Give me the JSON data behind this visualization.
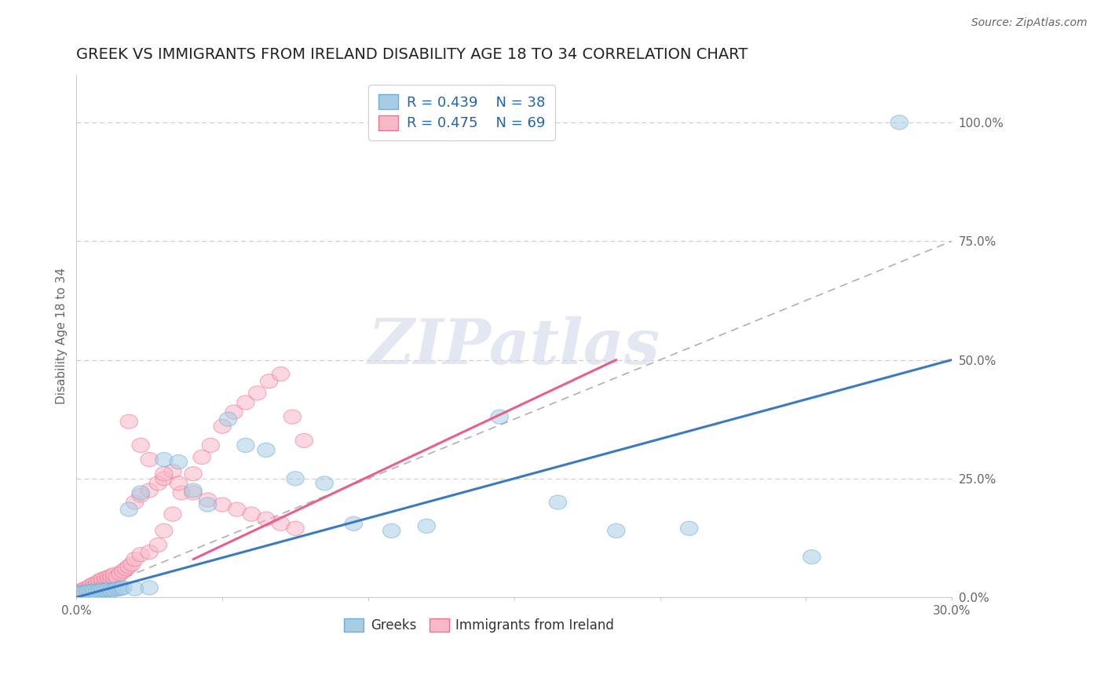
{
  "title": "GREEK VS IMMIGRANTS FROM IRELAND DISABILITY AGE 18 TO 34 CORRELATION CHART",
  "source_text": "Source: ZipAtlas.com",
  "ylabel": "Disability Age 18 to 34",
  "xlim": [
    0.0,
    0.3
  ],
  "ylim": [
    0.0,
    1.1
  ],
  "yticks_right": [
    0.0,
    0.25,
    0.5,
    0.75,
    1.0
  ],
  "ytick_labels_right": [
    "0.0%",
    "25.0%",
    "50.0%",
    "75.0%",
    "100.0%"
  ],
  "legend_blue_r": "R = 0.439",
  "legend_blue_n": "N = 38",
  "legend_pink_r": "R = 0.475",
  "legend_pink_n": "N = 69",
  "blue_color": "#a8cce4",
  "blue_edge_color": "#6aaed6",
  "pink_color": "#f9b8c8",
  "pink_edge_color": "#f07090",
  "blue_line_color": "#3a7abf",
  "pink_line_color": "#e8608a",
  "gray_dash_color": "#b0b0b0",
  "watermark_color": "#d0d8e8",
  "watermark_text": "ZIPatlas",
  "title_color": "#222222",
  "title_fontsize": 14,
  "blue_line_x": [
    0.0,
    0.3
  ],
  "blue_line_y": [
    0.0,
    0.5
  ],
  "pink_line_x": [
    0.04,
    0.185
  ],
  "pink_line_y": [
    0.08,
    0.5
  ],
  "gray_line_x": [
    0.0,
    0.3
  ],
  "gray_line_y": [
    0.0,
    0.75
  ],
  "blue_x": [
    0.001,
    0.002,
    0.003,
    0.004,
    0.005,
    0.006,
    0.007,
    0.008,
    0.009,
    0.01,
    0.011,
    0.012,
    0.013,
    0.014,
    0.015,
    0.016,
    0.018,
    0.02,
    0.022,
    0.025,
    0.03,
    0.035,
    0.04,
    0.045,
    0.052,
    0.058,
    0.065,
    0.075,
    0.085,
    0.095,
    0.108,
    0.12,
    0.145,
    0.165,
    0.185,
    0.21,
    0.252,
    0.282
  ],
  "blue_y": [
    0.008,
    0.01,
    0.01,
    0.012,
    0.012,
    0.013,
    0.012,
    0.014,
    0.015,
    0.015,
    0.016,
    0.015,
    0.016,
    0.018,
    0.018,
    0.02,
    0.185,
    0.018,
    0.22,
    0.02,
    0.29,
    0.285,
    0.225,
    0.195,
    0.375,
    0.32,
    0.31,
    0.25,
    0.24,
    0.155,
    0.14,
    0.15,
    0.38,
    0.2,
    0.14,
    0.145,
    0.085,
    1.0
  ],
  "pink_x": [
    0.001,
    0.001,
    0.002,
    0.002,
    0.003,
    0.003,
    0.004,
    0.004,
    0.005,
    0.005,
    0.006,
    0.006,
    0.007,
    0.007,
    0.008,
    0.008,
    0.009,
    0.009,
    0.01,
    0.01,
    0.011,
    0.011,
    0.012,
    0.012,
    0.013,
    0.013,
    0.014,
    0.015,
    0.016,
    0.017,
    0.018,
    0.019,
    0.02,
    0.022,
    0.025,
    0.028,
    0.03,
    0.033,
    0.036,
    0.04,
    0.043,
    0.046,
    0.05,
    0.054,
    0.058,
    0.062,
    0.066,
    0.07,
    0.074,
    0.078,
    0.02,
    0.022,
    0.025,
    0.028,
    0.03,
    0.033,
    0.018,
    0.022,
    0.025,
    0.03,
    0.035,
    0.04,
    0.045,
    0.05,
    0.055,
    0.06,
    0.065,
    0.07,
    0.075
  ],
  "pink_y": [
    0.008,
    0.012,
    0.01,
    0.015,
    0.012,
    0.018,
    0.015,
    0.02,
    0.018,
    0.025,
    0.02,
    0.028,
    0.025,
    0.03,
    0.028,
    0.035,
    0.03,
    0.038,
    0.032,
    0.04,
    0.035,
    0.042,
    0.038,
    0.045,
    0.04,
    0.048,
    0.042,
    0.05,
    0.055,
    0.06,
    0.065,
    0.07,
    0.08,
    0.09,
    0.095,
    0.11,
    0.14,
    0.175,
    0.22,
    0.26,
    0.295,
    0.32,
    0.36,
    0.39,
    0.41,
    0.43,
    0.455,
    0.47,
    0.38,
    0.33,
    0.2,
    0.215,
    0.225,
    0.24,
    0.25,
    0.265,
    0.37,
    0.32,
    0.29,
    0.26,
    0.24,
    0.22,
    0.205,
    0.195,
    0.185,
    0.175,
    0.165,
    0.155,
    0.145
  ]
}
